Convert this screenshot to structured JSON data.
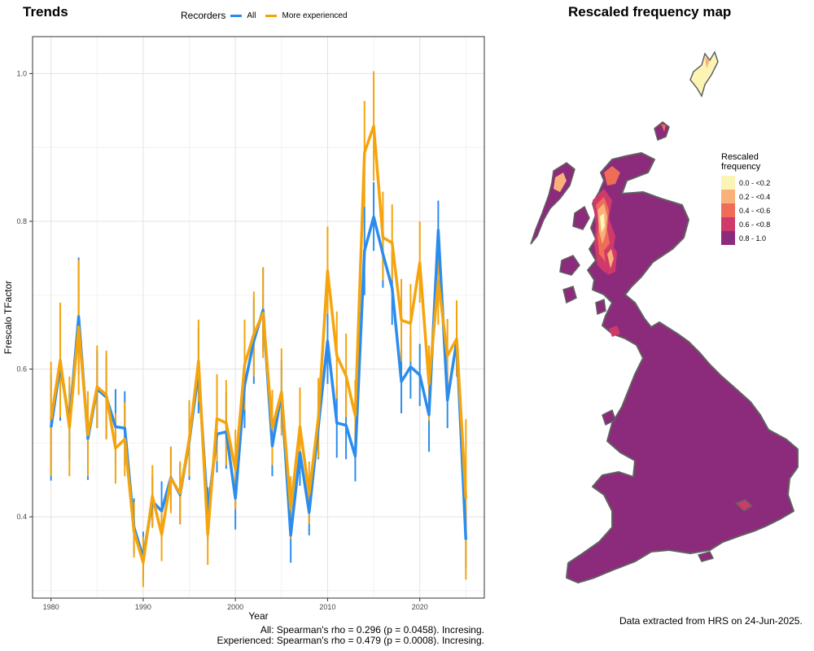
{
  "trends": {
    "title": "Trends",
    "legend_title": "Recorders",
    "legend_items": [
      {
        "label": "All",
        "color": "#2b8cee"
      },
      {
        "label": "More experienced",
        "color": "#f5a40c"
      }
    ],
    "stats": [
      "All: Spearman's rho = 0.296 (p = 0.0458). Incresing.",
      "Experienced: Spearman's rho = 0.479 (p = 0.0008). Incresing."
    ]
  },
  "map": {
    "title": "Rescaled frequency map",
    "legend_title_line1": "Rescaled",
    "legend_title_line2": "frequency",
    "legend_items": [
      {
        "label": "0.0 - <0.2",
        "color": "#fcf4b4"
      },
      {
        "label": "0.2 - <0.4",
        "color": "#f9b07a"
      },
      {
        "label": "0.4 - <0.6",
        "color": "#ef6c56"
      },
      {
        "label": "0.6 - <0.8",
        "color": "#cf3a6a"
      },
      {
        "label": "0.8 - 1.0",
        "color": "#8c2a7c"
      }
    ]
  },
  "credit": "Data extracted from HRS on 24-Jun-2025.",
  "chart_data": {
    "type": "line",
    "title": "Trends",
    "xlabel": "Year",
    "ylabel": "Frescalo TFactor",
    "xlim": [
      1978,
      2027
    ],
    "ylim": [
      0.29,
      1.05
    ],
    "xticks": [
      1980,
      1990,
      2000,
      2010,
      2020
    ],
    "yticks": [
      0.4,
      0.6,
      0.8,
      1.0
    ],
    "ytick_labels": [
      "0.4",
      "0.6",
      "0.8",
      "1.0"
    ],
    "grid": true,
    "legend_position": "top",
    "x": [
      1980,
      1981,
      1982,
      1983,
      1984,
      1985,
      1986,
      1987,
      1988,
      1989,
      1990,
      1991,
      1992,
      1993,
      1994,
      1995,
      1996,
      1997,
      1998,
      1999,
      2000,
      2001,
      2002,
      2003,
      2004,
      2005,
      2006,
      2007,
      2008,
      2009,
      2010,
      2011,
      2012,
      2013,
      2014,
      2015,
      2016,
      2017,
      2018,
      2019,
      2020,
      2021,
      2022,
      2023,
      2024,
      2025
    ],
    "series": [
      {
        "name": "All",
        "color": "#2b8cee",
        "values": [
          0.521,
          0.605,
          0.527,
          0.671,
          0.506,
          0.573,
          0.562,
          0.522,
          0.52,
          0.386,
          0.345,
          0.421,
          0.408,
          0.453,
          0.43,
          0.503,
          0.597,
          0.405,
          0.512,
          0.515,
          0.425,
          0.578,
          0.638,
          0.68,
          0.496,
          0.567,
          0.375,
          0.487,
          0.406,
          0.522,
          0.638,
          0.527,
          0.524,
          0.482,
          0.76,
          0.806,
          0.756,
          0.71,
          0.583,
          0.603,
          0.592,
          0.538,
          0.788,
          0.558,
          0.638,
          0.369
        ],
        "lower": [
          0.449,
          0.53,
          0.478,
          0.593,
          0.45,
          0.52,
          0.505,
          0.47,
          0.47,
          0.35,
          0.316,
          0.387,
          0.368,
          0.41,
          0.39,
          0.45,
          0.54,
          0.37,
          0.46,
          0.465,
          0.383,
          0.52,
          0.58,
          0.623,
          0.455,
          0.52,
          0.338,
          0.442,
          0.375,
          0.478,
          0.58,
          0.48,
          0.478,
          0.448,
          0.7,
          0.76,
          0.71,
          0.66,
          0.54,
          0.56,
          0.55,
          0.488,
          0.75,
          0.52,
          0.59,
          0.33
        ],
        "upper": [
          0.592,
          0.68,
          0.578,
          0.751,
          0.56,
          0.625,
          0.618,
          0.573,
          0.57,
          0.425,
          0.38,
          0.455,
          0.448,
          0.495,
          0.472,
          0.555,
          0.656,
          0.44,
          0.565,
          0.568,
          0.465,
          0.635,
          0.695,
          0.737,
          0.537,
          0.612,
          0.412,
          0.53,
          0.437,
          0.568,
          0.695,
          0.575,
          0.57,
          0.516,
          0.82,
          0.853,
          0.802,
          0.76,
          0.627,
          0.646,
          0.634,
          0.588,
          0.828,
          0.596,
          0.686,
          0.408
        ]
      },
      {
        "name": "More experienced",
        "color": "#f5a40c",
        "values": [
          0.532,
          0.612,
          0.521,
          0.657,
          0.511,
          0.576,
          0.565,
          0.493,
          0.505,
          0.38,
          0.338,
          0.428,
          0.376,
          0.452,
          0.432,
          0.506,
          0.611,
          0.376,
          0.533,
          0.527,
          0.464,
          0.606,
          0.647,
          0.676,
          0.52,
          0.569,
          0.411,
          0.522,
          0.431,
          0.534,
          0.733,
          0.618,
          0.591,
          0.537,
          0.893,
          0.929,
          0.778,
          0.771,
          0.666,
          0.662,
          0.744,
          0.58,
          0.72,
          0.618,
          0.641,
          0.425
        ],
        "lower": [
          0.455,
          0.535,
          0.455,
          0.565,
          0.455,
          0.52,
          0.505,
          0.445,
          0.455,
          0.345,
          0.305,
          0.385,
          0.34,
          0.405,
          0.39,
          0.455,
          0.555,
          0.335,
          0.475,
          0.47,
          0.41,
          0.545,
          0.59,
          0.615,
          0.47,
          0.51,
          0.37,
          0.47,
          0.39,
          0.48,
          0.675,
          0.56,
          0.535,
          0.49,
          0.82,
          0.855,
          0.72,
          0.72,
          0.61,
          0.61,
          0.69,
          0.53,
          0.66,
          0.57,
          0.59,
          0.315
        ],
        "upper": [
          0.61,
          0.69,
          0.59,
          0.748,
          0.57,
          0.632,
          0.625,
          0.54,
          0.555,
          0.42,
          0.373,
          0.47,
          0.41,
          0.495,
          0.475,
          0.558,
          0.667,
          0.42,
          0.593,
          0.585,
          0.518,
          0.667,
          0.705,
          0.738,
          0.572,
          0.628,
          0.455,
          0.575,
          0.475,
          0.588,
          0.793,
          0.678,
          0.648,
          0.585,
          0.963,
          1.003,
          0.84,
          0.823,
          0.722,
          0.715,
          0.8,
          0.632,
          0.78,
          0.668,
          0.693,
          0.532
        ]
      }
    ]
  }
}
